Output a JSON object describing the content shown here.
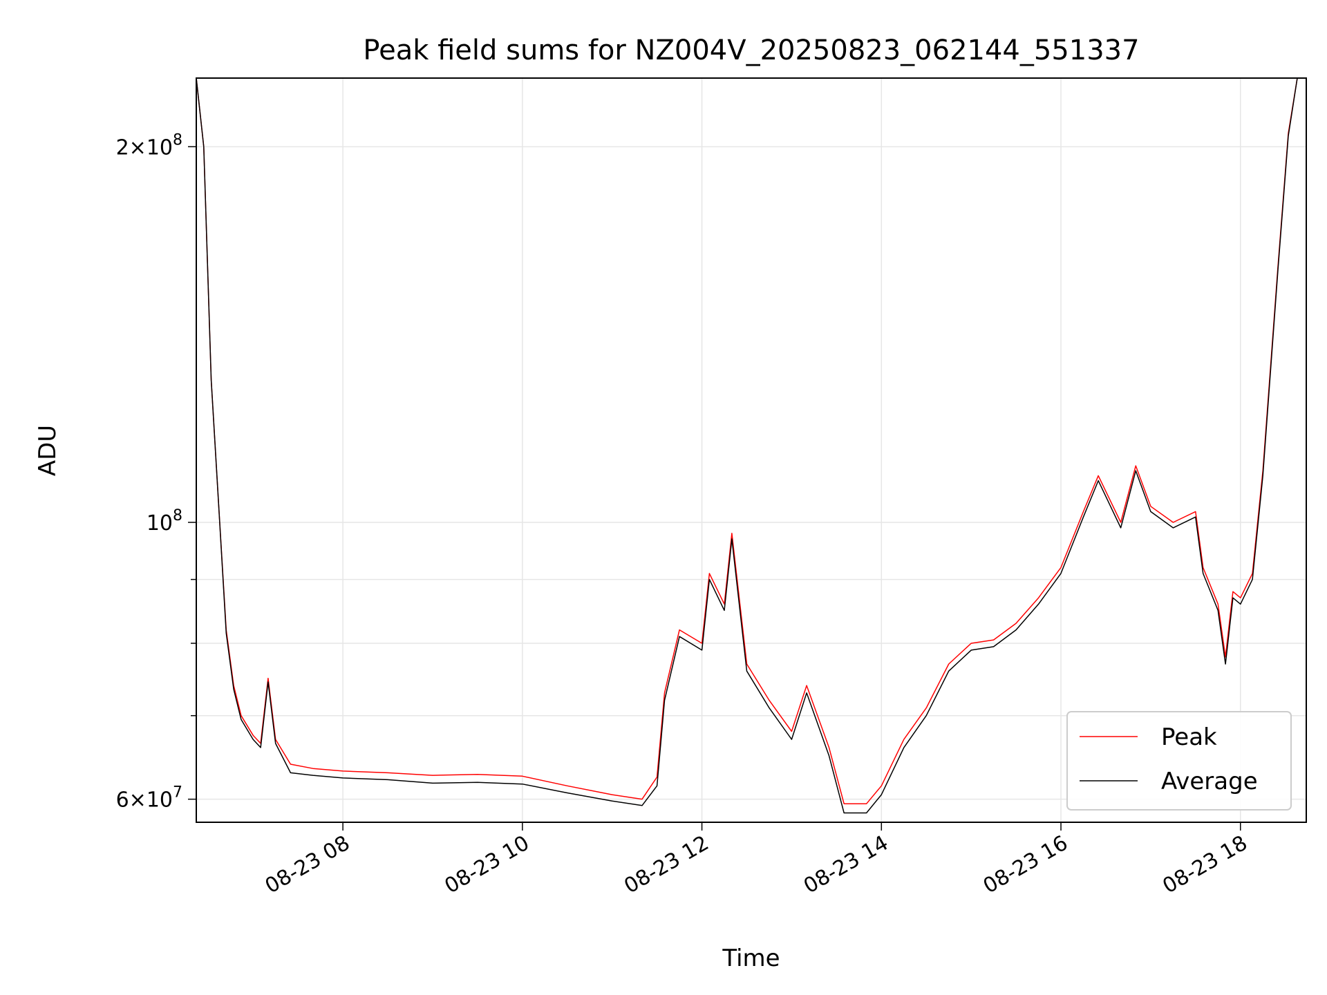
{
  "chart_data": {
    "type": "line",
    "title": "Peak field sums for NZ004V_20250823_062144_551337",
    "xlabel": "Time",
    "ylabel": "ADU",
    "yscale": "log",
    "ylim": [
      57500000,
      227000000
    ],
    "xlim": [
      "08-23 06:22",
      "08-23 18:44"
    ],
    "grid": true,
    "legend_position": "lower right",
    "x_ticks": [
      "08-23 08",
      "08-23 10",
      "08-23 12",
      "08-23 14",
      "08-23 16",
      "08-23 18"
    ],
    "y_ticks": [
      {
        "value": 60000000,
        "label": "6 × 10^7"
      },
      {
        "value": 100000000,
        "label": "10^8"
      },
      {
        "value": 200000000,
        "label": "2 × 10^8"
      }
    ],
    "series": [
      {
        "name": "Peak",
        "color": "#ff0000",
        "points": [
          [
            "08-23 06:22",
            227000000
          ],
          [
            "08-23 06:27",
            200000000
          ],
          [
            "08-23 06:32",
            130000000
          ],
          [
            "08-23 06:37",
            103000000
          ],
          [
            "08-23 06:42",
            82000000
          ],
          [
            "08-23 06:47",
            74000000
          ],
          [
            "08-23 06:52",
            70000000
          ],
          [
            "08-23 07:00",
            67500000
          ],
          [
            "08-23 07:05",
            66500000
          ],
          [
            "08-23 07:10",
            75000000
          ],
          [
            "08-23 07:15",
            67000000
          ],
          [
            "08-23 07:25",
            64000000
          ],
          [
            "08-23 07:40",
            63500000
          ],
          [
            "08-23 08:00",
            63200000
          ],
          [
            "08-23 08:30",
            63000000
          ],
          [
            "08-23 09:00",
            62700000
          ],
          [
            "08-23 09:30",
            62800000
          ],
          [
            "08-23 10:00",
            62600000
          ],
          [
            "08-23 10:30",
            61500000
          ],
          [
            "08-23 11:00",
            60500000
          ],
          [
            "08-23 11:20",
            60000000
          ],
          [
            "08-23 11:30",
            62500000
          ],
          [
            "08-23 11:35",
            73000000
          ],
          [
            "08-23 11:45",
            82000000
          ],
          [
            "08-23 12:00",
            80000000
          ],
          [
            "08-23 12:05",
            91000000
          ],
          [
            "08-23 12:15",
            86000000
          ],
          [
            "08-23 12:20",
            98000000
          ],
          [
            "08-23 12:30",
            77000000
          ],
          [
            "08-23 12:45",
            72000000
          ],
          [
            "08-23 13:00",
            68000000
          ],
          [
            "08-23 13:10",
            74000000
          ],
          [
            "08-23 13:25",
            66000000
          ],
          [
            "08-23 13:35",
            59500000
          ],
          [
            "08-23 13:50",
            59500000
          ],
          [
            "08-23 14:00",
            61500000
          ],
          [
            "08-23 14:15",
            67000000
          ],
          [
            "08-23 14:30",
            71000000
          ],
          [
            "08-23 14:45",
            77000000
          ],
          [
            "08-23 15:00",
            80000000
          ],
          [
            "08-23 15:15",
            80500000
          ],
          [
            "08-23 15:30",
            83000000
          ],
          [
            "08-23 15:45",
            87000000
          ],
          [
            "08-23 16:00",
            92000000
          ],
          [
            "08-23 16:15",
            102000000
          ],
          [
            "08-23 16:25",
            109000000
          ],
          [
            "08-23 16:40",
            100000000
          ],
          [
            "08-23 16:50",
            111000000
          ],
          [
            "08-23 17:00",
            103000000
          ],
          [
            "08-23 17:15",
            100000000
          ],
          [
            "08-23 17:30",
            102000000
          ],
          [
            "08-23 17:35",
            92000000
          ],
          [
            "08-23 17:45",
            86000000
          ],
          [
            "08-23 17:50",
            78000000
          ],
          [
            "08-23 17:55",
            88000000
          ],
          [
            "08-23 18:00",
            87000000
          ],
          [
            "08-23 18:08",
            91000000
          ],
          [
            "08-23 18:15",
            110000000
          ],
          [
            "08-23 18:25",
            160000000
          ],
          [
            "08-23 18:32",
            205000000
          ],
          [
            "08-23 18:38",
            227000000
          ],
          [
            "08-23 18:44",
            227000000
          ]
        ]
      },
      {
        "name": "Average",
        "color": "#000000",
        "points": [
          [
            "08-23 06:22",
            227000000
          ],
          [
            "08-23 06:27",
            200000000
          ],
          [
            "08-23 06:32",
            130000000
          ],
          [
            "08-23 06:37",
            103000000
          ],
          [
            "08-23 06:42",
            81500000
          ],
          [
            "08-23 06:47",
            73500000
          ],
          [
            "08-23 06:52",
            69500000
          ],
          [
            "08-23 07:00",
            67000000
          ],
          [
            "08-23 07:05",
            66000000
          ],
          [
            "08-23 07:10",
            74500000
          ],
          [
            "08-23 07:15",
            66500000
          ],
          [
            "08-23 07:25",
            63000000
          ],
          [
            "08-23 07:40",
            62700000
          ],
          [
            "08-23 08:00",
            62400000
          ],
          [
            "08-23 08:30",
            62200000
          ],
          [
            "08-23 09:00",
            61800000
          ],
          [
            "08-23 09:30",
            61900000
          ],
          [
            "08-23 10:00",
            61700000
          ],
          [
            "08-23 10:30",
            60700000
          ],
          [
            "08-23 11:00",
            59800000
          ],
          [
            "08-23 11:20",
            59300000
          ],
          [
            "08-23 11:30",
            61500000
          ],
          [
            "08-23 11:35",
            72000000
          ],
          [
            "08-23 11:45",
            81000000
          ],
          [
            "08-23 12:00",
            79000000
          ],
          [
            "08-23 12:05",
            90000000
          ],
          [
            "08-23 12:15",
            85000000
          ],
          [
            "08-23 12:20",
            97000000
          ],
          [
            "08-23 12:30",
            76000000
          ],
          [
            "08-23 12:45",
            71000000
          ],
          [
            "08-23 13:00",
            67000000
          ],
          [
            "08-23 13:10",
            73000000
          ],
          [
            "08-23 13:25",
            65000000
          ],
          [
            "08-23 13:35",
            58500000
          ],
          [
            "08-23 13:50",
            58500000
          ],
          [
            "08-23 14:00",
            60500000
          ],
          [
            "08-23 14:15",
            66000000
          ],
          [
            "08-23 14:30",
            70000000
          ],
          [
            "08-23 14:45",
            76000000
          ],
          [
            "08-23 15:00",
            79000000
          ],
          [
            "08-23 15:15",
            79500000
          ],
          [
            "08-23 15:30",
            82000000
          ],
          [
            "08-23 15:45",
            86000000
          ],
          [
            "08-23 16:00",
            91000000
          ],
          [
            "08-23 16:15",
            101000000
          ],
          [
            "08-23 16:25",
            108000000
          ],
          [
            "08-23 16:40",
            99000000
          ],
          [
            "08-23 16:50",
            110000000
          ],
          [
            "08-23 17:00",
            102000000
          ],
          [
            "08-23 17:15",
            99000000
          ],
          [
            "08-23 17:30",
            101000000
          ],
          [
            "08-23 17:35",
            91000000
          ],
          [
            "08-23 17:45",
            85000000
          ],
          [
            "08-23 17:50",
            77000000
          ],
          [
            "08-23 17:55",
            87000000
          ],
          [
            "08-23 18:00",
            86000000
          ],
          [
            "08-23 18:08",
            90000000
          ],
          [
            "08-23 18:15",
            109000000
          ],
          [
            "08-23 18:25",
            159000000
          ],
          [
            "08-23 18:32",
            204000000
          ],
          [
            "08-23 18:38",
            227000000
          ],
          [
            "08-23 18:44",
            227000000
          ]
        ]
      }
    ]
  }
}
